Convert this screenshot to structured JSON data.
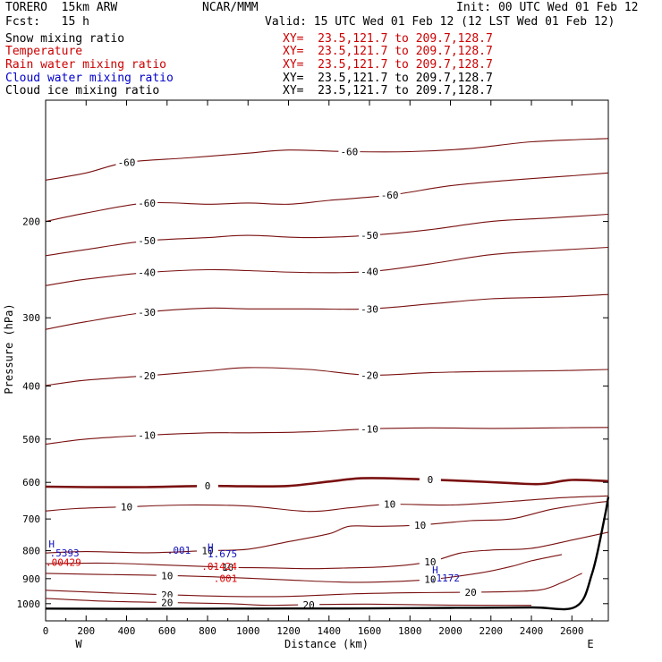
{
  "header": {
    "model": "TORERO  15km ARW",
    "center": "NCAR/MMM",
    "init": "Init: 00 UTC Wed 01 Feb 12",
    "fcst": "Fcst:   15 h",
    "valid": "Valid: 15 UTC Wed 01 Feb 12 (12 LST Wed 01 Feb 12)"
  },
  "legend": [
    {
      "label": "Snow mixing ratio",
      "color": "#000000",
      "xy": "XY=  23.5,121.7 to 209.7,128.7",
      "xy_color": "#cc0000"
    },
    {
      "label": "Temperature",
      "color": "#cc0000",
      "xy": "XY=  23.5,121.7 to 209.7,128.7",
      "xy_color": "#cc0000"
    },
    {
      "label": "Rain water mixing ratio",
      "color": "#cc0000",
      "xy": "XY=  23.5,121.7 to 209.7,128.7",
      "xy_color": "#cc0000"
    },
    {
      "label": "Cloud water mixing ratio",
      "color": "#0000cc",
      "xy": "XY=  23.5,121.7 to 209.7,128.7",
      "xy_color": "#000000"
    },
    {
      "label": "Cloud ice mixing ratio",
      "color": "#000000",
      "xy": "XY=  23.5,121.7 to 209.7,128.7",
      "xy_color": "#000000"
    }
  ],
  "colors": {
    "temperature": "#7a1010",
    "freezing": "#7a1010",
    "rain": "#e00000",
    "cloud_water": "#1010c0",
    "terrain": "#000000"
  },
  "chart_data": {
    "type": "line",
    "title": "",
    "xlabel": "Distance (km)",
    "ylabel": "Pressure (hPa)",
    "xlim": [
      0,
      2780
    ],
    "ylim": [
      1075,
      120
    ],
    "y_scale": "log",
    "x_ticks": [
      0,
      200,
      400,
      600,
      800,
      1000,
      1200,
      1400,
      1600,
      1800,
      2000,
      2200,
      2400,
      2600
    ],
    "x_tick_labels": [
      "0",
      "200",
      "400",
      "600",
      "800",
      "1000",
      "1200",
      "1400",
      "1600",
      "1800",
      "2000",
      "2200",
      "2400",
      "2600"
    ],
    "y_ticks": [
      200,
      300,
      400,
      500,
      600,
      700,
      800,
      900,
      1000
    ],
    "y_tick_labels": [
      "200",
      "300",
      "400",
      "500",
      "600",
      "700",
      "800",
      "900",
      "1000"
    ],
    "x_end_labels": {
      "left": "W",
      "right": "E"
    },
    "temperature_contours": [
      {
        "level": -60,
        "points": [
          [
            0,
            200
          ],
          [
            200,
            193
          ],
          [
            500,
            185
          ],
          [
            800,
            186
          ],
          [
            1000,
            185
          ],
          [
            1200,
            186
          ],
          [
            1400,
            183
          ],
          [
            1700,
            179
          ],
          [
            2000,
            172
          ],
          [
            2300,
            168
          ],
          [
            2600,
            165
          ],
          [
            2780,
            163
          ]
        ]
      },
      {
        "level": -60,
        "points": [
          [
            0,
            168
          ],
          [
            200,
            163
          ],
          [
            400,
            156
          ],
          [
            700,
            153
          ],
          [
            1000,
            150
          ],
          [
            1200,
            148
          ],
          [
            1500,
            149
          ],
          [
            1800,
            149
          ],
          [
            2100,
            147
          ],
          [
            2400,
            143
          ],
          [
            2780,
            141
          ]
        ]
      },
      {
        "level": -50,
        "points": [
          [
            0,
            231
          ],
          [
            200,
            225
          ],
          [
            500,
            217
          ],
          [
            800,
            214
          ],
          [
            1000,
            212
          ],
          [
            1300,
            214
          ],
          [
            1600,
            212
          ],
          [
            1900,
            207
          ],
          [
            2200,
            200
          ],
          [
            2500,
            197
          ],
          [
            2780,
            194
          ]
        ]
      },
      {
        "level": -40,
        "points": [
          [
            0,
            262
          ],
          [
            200,
            255
          ],
          [
            500,
            248
          ],
          [
            800,
            245
          ],
          [
            1000,
            246
          ],
          [
            1300,
            248
          ],
          [
            1600,
            247
          ],
          [
            1900,
            239
          ],
          [
            2200,
            230
          ],
          [
            2500,
            226
          ],
          [
            2780,
            223
          ]
        ]
      },
      {
        "level": -30,
        "points": [
          [
            0,
            315
          ],
          [
            200,
            305
          ],
          [
            500,
            293
          ],
          [
            800,
            288
          ],
          [
            1000,
            289
          ],
          [
            1300,
            289
          ],
          [
            1600,
            289
          ],
          [
            1900,
            283
          ],
          [
            2200,
            277
          ],
          [
            2500,
            275
          ],
          [
            2780,
            272
          ]
        ]
      },
      {
        "level": -20,
        "points": [
          [
            0,
            399
          ],
          [
            200,
            390
          ],
          [
            500,
            383
          ],
          [
            800,
            375
          ],
          [
            1000,
            370
          ],
          [
            1300,
            373
          ],
          [
            1600,
            382
          ],
          [
            1900,
            378
          ],
          [
            2200,
            376
          ],
          [
            2500,
            375
          ],
          [
            2780,
            373
          ]
        ]
      },
      {
        "level": -10,
        "points": [
          [
            0,
            511
          ],
          [
            200,
            500
          ],
          [
            500,
            492
          ],
          [
            800,
            487
          ],
          [
            1000,
            487
          ],
          [
            1300,
            485
          ],
          [
            1600,
            479
          ],
          [
            1900,
            477
          ],
          [
            2200,
            478
          ],
          [
            2500,
            477
          ],
          [
            2780,
            476
          ]
        ]
      },
      {
        "level": 0,
        "bold": true,
        "points": [
          [
            0,
            611
          ],
          [
            200,
            612
          ],
          [
            500,
            612
          ],
          [
            800,
            609
          ],
          [
            1000,
            610
          ],
          [
            1200,
            609
          ],
          [
            1400,
            598
          ],
          [
            1550,
            590
          ],
          [
            1700,
            590
          ],
          [
            1900,
            593
          ],
          [
            2100,
            597
          ],
          [
            2300,
            602
          ],
          [
            2450,
            604
          ],
          [
            2600,
            594
          ],
          [
            2780,
            597
          ]
        ]
      },
      {
        "level": 10,
        "points": [
          [
            0,
            677
          ],
          [
            150,
            670
          ],
          [
            400,
            665
          ],
          [
            700,
            660
          ],
          [
            1000,
            663
          ],
          [
            1300,
            678
          ],
          [
            1500,
            668
          ],
          [
            1700,
            658
          ],
          [
            2000,
            660
          ],
          [
            2300,
            650
          ],
          [
            2550,
            640
          ],
          [
            2780,
            635
          ]
        ]
      },
      {
        "level": 10,
        "points": [
          [
            0,
            808
          ],
          [
            200,
            803
          ],
          [
            500,
            807
          ],
          [
            800,
            800
          ],
          [
            1000,
            795
          ],
          [
            1200,
            770
          ],
          [
            1400,
            745
          ],
          [
            1500,
            722
          ],
          [
            1650,
            722
          ],
          [
            1850,
            718
          ],
          [
            2100,
            705
          ],
          [
            2300,
            700
          ],
          [
            2500,
            672
          ],
          [
            2700,
            655
          ],
          [
            2780,
            650
          ]
        ]
      },
      {
        "level": 10,
        "points": [
          [
            0,
            845
          ],
          [
            300,
            843
          ],
          [
            600,
            850
          ],
          [
            900,
            858
          ],
          [
            1100,
            860
          ],
          [
            1300,
            863
          ],
          [
            1500,
            860
          ],
          [
            1700,
            855
          ],
          [
            1900,
            838
          ],
          [
            2050,
            808
          ],
          [
            2200,
            798
          ],
          [
            2400,
            792
          ],
          [
            2600,
            765
          ],
          [
            2780,
            740
          ]
        ]
      },
      {
        "level": 10,
        "points": [
          [
            0,
            880
          ],
          [
            250,
            884
          ],
          [
            600,
            888
          ],
          [
            900,
            895
          ],
          [
            1200,
            905
          ],
          [
            1450,
            913
          ],
          [
            1650,
            913
          ],
          [
            1900,
            903
          ],
          [
            2150,
            878
          ],
          [
            2300,
            855
          ],
          [
            2400,
            835
          ],
          [
            2550,
            813
          ]
        ]
      },
      {
        "level": 20,
        "points": [
          [
            0,
            945
          ],
          [
            300,
            955
          ],
          [
            600,
            963
          ],
          [
            900,
            970
          ],
          [
            1200,
            970
          ],
          [
            1500,
            960
          ],
          [
            1800,
            955
          ],
          [
            2100,
            953
          ],
          [
            2300,
            950
          ],
          [
            2450,
            943
          ],
          [
            2550,
            915
          ],
          [
            2650,
            880
          ]
        ]
      },
      {
        "level": 20,
        "points": [
          [
            0,
            978
          ],
          [
            300,
            990
          ],
          [
            600,
            995
          ],
          [
            900,
            1000
          ],
          [
            1100,
            1007
          ],
          [
            1300,
            1004
          ],
          [
            1600,
            1002
          ],
          [
            2000,
            1006
          ],
          [
            2400,
            1007
          ]
        ]
      }
    ],
    "terrain": {
      "points": [
        [
          0,
          1021
        ],
        [
          400,
          1022
        ],
        [
          1000,
          1021
        ],
        [
          1600,
          1020
        ],
        [
          2000,
          1018
        ],
        [
          2400,
          1016
        ],
        [
          2620,
          1012
        ],
        [
          2700,
          880
        ],
        [
          2760,
          700
        ],
        [
          2780,
          638
        ]
      ]
    },
    "cloud_water_labels": [
      {
        "text": "H",
        "x": 15,
        "p": 790
      },
      {
        "text": ".5393",
        "x": 20,
        "p": 820
      },
      {
        "text": ".001",
        "x": 600,
        "p": 810
      },
      {
        "text": "H",
        "x": 800,
        "p": 800
      },
      {
        "text": "1.675",
        "x": 800,
        "p": 822
      },
      {
        "text": "H",
        "x": 1910,
        "p": 880
      },
      {
        "text": ".1172",
        "x": 1900,
        "p": 910
      }
    ],
    "rain_labels": [
      {
        "text": ".00429",
        "x": 0,
        "p": 852
      },
      {
        "text": ".01424",
        "x": 770,
        "p": 867
      },
      {
        "text": ".001",
        "x": 830,
        "p": 913
      }
    ]
  }
}
